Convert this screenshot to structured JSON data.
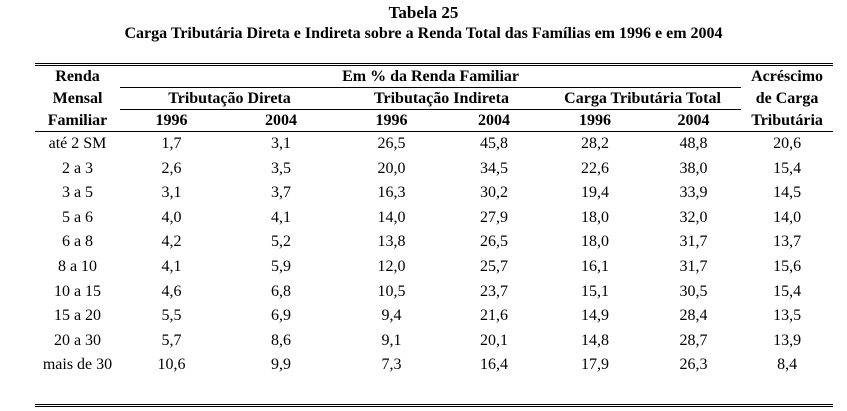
{
  "title": "Tabela 25",
  "subtitle": "Carga Tributária Direta e Indireta sobre a Renda Total das Famílias em 1996 e em 2004",
  "header": {
    "first_col": [
      "Renda",
      "Mensal",
      "Familiar"
    ],
    "group_top": "Em % da Renda Familiar",
    "groups": [
      "Tributação Direta",
      "Tributação Indireta",
      "Carga Tributária Total"
    ],
    "last_col": [
      "Acréscimo",
      "de Carga",
      "Tributária"
    ],
    "years": [
      "1996",
      "2004",
      "1996",
      "2004",
      "1996",
      "2004"
    ]
  },
  "rows": [
    [
      "até 2 SM",
      "1,7",
      "3,1",
      "26,5",
      "45,8",
      "28,2",
      "48,8",
      "20,6"
    ],
    [
      "2 a 3",
      "2,6",
      "3,5",
      "20,0",
      "34,5",
      "22,6",
      "38,0",
      "15,4"
    ],
    [
      "3 a 5",
      "3,1",
      "3,7",
      "16,3",
      "30,2",
      "19,4",
      "33,9",
      "14,5"
    ],
    [
      "5 a 6",
      "4,0",
      "4,1",
      "14,0",
      "27,9",
      "18,0",
      "32,0",
      "14,0"
    ],
    [
      "6 a 8",
      "4,2",
      "5,2",
      "13,8",
      "26,5",
      "18,0",
      "31,7",
      "13,7"
    ],
    [
      "8 a 10",
      "4,1",
      "5,9",
      "12,0",
      "25,7",
      "16,1",
      "31,7",
      "15,6"
    ],
    [
      "10 a 15",
      "4,6",
      "6,8",
      "10,5",
      "23,7",
      "15,1",
      "30,5",
      "15,4"
    ],
    [
      "15 a 20",
      "5,5",
      "6,9",
      "9,4",
      "21,6",
      "14,9",
      "28,4",
      "13,5"
    ],
    [
      "20 a 30",
      "5,7",
      "8,6",
      "9,1",
      "20,1",
      "14,8",
      "28,7",
      "13,9"
    ],
    [
      "mais de 30",
      "10,6",
      "9,9",
      "7,3",
      "16,4",
      "17,9",
      "26,3",
      "8,4"
    ]
  ]
}
